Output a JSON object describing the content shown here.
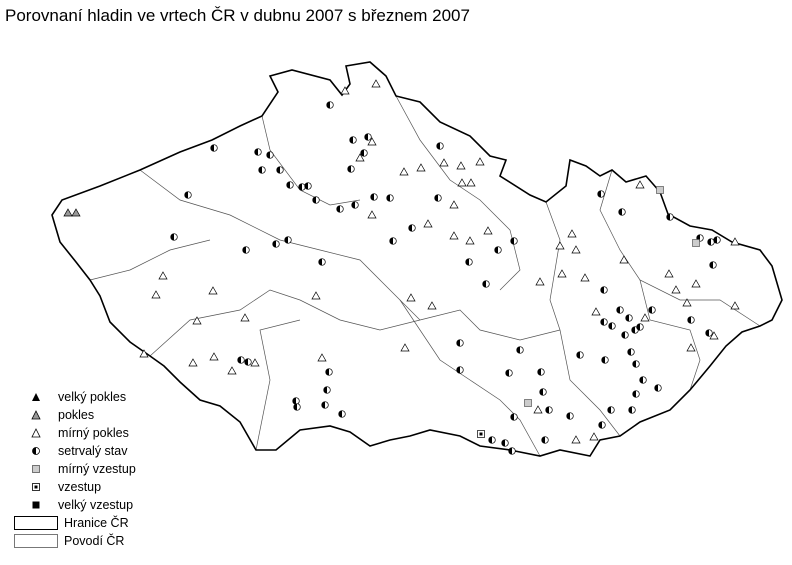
{
  "title": "Porovnaní hladin ve vrtech ČR v dubnu 2007 s březnem 2007",
  "legend": {
    "items": [
      {
        "label": "velký pokles",
        "icon": "triangle-filled-black"
      },
      {
        "label": "pokles",
        "icon": "triangle-hatched"
      },
      {
        "label": "mírný pokles",
        "icon": "triangle-outline"
      },
      {
        "label": "setrvalý stav",
        "icon": "half-filled-circle"
      },
      {
        "label": "mírný vzestup",
        "icon": "square-grey"
      },
      {
        "label": "vzestup",
        "icon": "square-dotted"
      },
      {
        "label": "velký vzestup",
        "icon": "square-filled-black"
      }
    ],
    "boundary": "Hranice ČR",
    "basins": "Povodí ČR"
  }
}
